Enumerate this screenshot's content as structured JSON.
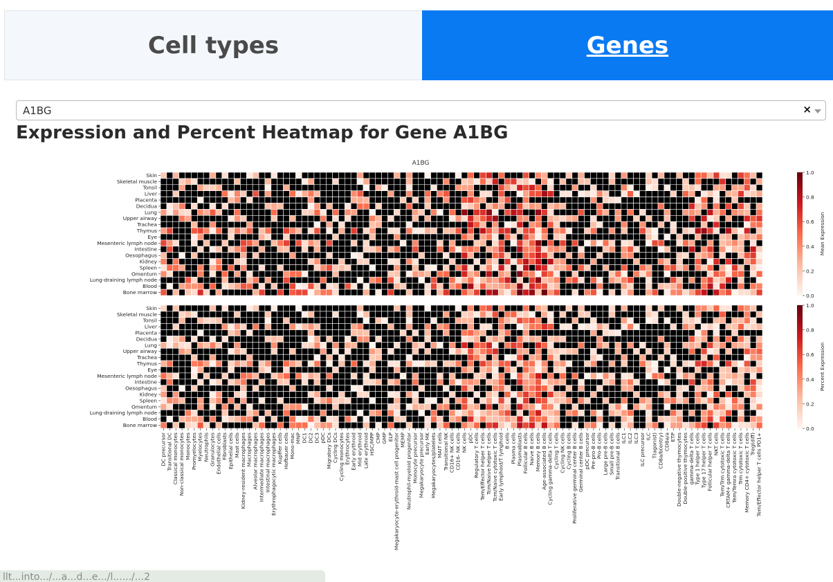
{
  "tabs": [
    {
      "label": "Cell types"
    },
    {
      "label": "Genes"
    }
  ],
  "select": {
    "value": "A1BG",
    "clear_icon": "×"
  },
  "heading": "Expression and Percent Heatmap for Gene A1BG",
  "status_url": "llt...into.../...a...d...e.../l....../...2",
  "chart_data": {
    "type": "heatmap",
    "title": "A1BG",
    "tissues": [
      "Skin",
      "Skeletal muscle",
      "Tonsil",
      "Liver",
      "Placenta",
      "Decidua",
      "Lung",
      "Upper airway",
      "Trachea",
      "Thymus",
      "Eye",
      "Mesenteric lymph node",
      "Intestine",
      "Oesophagus",
      "Kidney",
      "Spleen",
      "Omentum",
      "Lung-draining lymph node",
      "Blood",
      "Bone marrow"
    ],
    "cell_types": [
      "DC precursor",
      "Transitional DC",
      "Classical monocytes",
      "Non-classical monocytes",
      "Monocytes",
      "Promyelocytes",
      "Myelocytes",
      "Neutrophils",
      "Granulocytes",
      "Endothelial cells",
      "Fibroblasts",
      "Epithelial cells",
      "Mast cells",
      "Kidney-resident macrophages",
      "Macrophages",
      "Alveolar macrophages",
      "Intermediate macrophages",
      "Intestinal macrophages",
      "Erythrophagocytic macrophages",
      "Kupffer cells",
      "Hofbauer cells",
      "Mono-mac",
      "MNP",
      "DC1",
      "DC2",
      "DC3",
      "pDC",
      "Migratory DCs",
      "Cycling DCs",
      "Cycling monocytes",
      "Erythrocytes",
      "Early erythroid",
      "Mid erythroid",
      "Late erythroid",
      "HSC/MPP",
      "CMP",
      "GMP",
      "ELP",
      "Megakaryocyte-erythroid-mast cell progenitor",
      "MEMP",
      "Neutrophil-myeloid progenitor",
      "Monocyte precursor",
      "Megakaryocyte precursor",
      "Early MK",
      "Megakaryocytes/platelets",
      "MAIT cells",
      "Transitional NK",
      "CD16+ NK cells",
      "CD16- NK cells",
      "NK cells",
      "pDC",
      "Regulatory T cells",
      "Tem/Effector helper T cells",
      "Tcm/Naive helper T cells",
      "Tcm/Naive cytotoxic T cells",
      "Early lymphoid/T lymphoid",
      "B cells",
      "Plasma cells",
      "Plasmablasts",
      "Follicular B cells",
      "Naive B cells",
      "Memory B cells",
      "Age-associated B cells",
      "Cycling gamma-delta T cells",
      "Cycling T cells",
      "Cycling NK cells",
      "Cycling B cells",
      "Proliferative germinal center B cells",
      "Germinal center B cells",
      "pDC precursor",
      "Pre-pro-B cells",
      "Pro-B cells",
      "Large pre-B cells",
      "Small pre-B cells",
      "Transitional B cells",
      "ILC1",
      "ILC2",
      "ILC3",
      "ILC precursor",
      "ILC",
      "T(agonist)",
      "CD8a/b(entry)",
      "CD8a/a",
      "ETP",
      "Double-negative thymocytes",
      "Double-positive thymocytes",
      "gamma-delta T cells",
      "Type 1 helper T cells",
      "Type 17 helper T cells",
      "Follicular helper T cells",
      "NKT cells",
      "Tem/Trm cytotoxic T cells",
      "CRTAM+ gamma-delta T cells",
      "Tem/Temra cytotoxic T cells",
      "Trm cytotoxic T cells",
      "Memory CD4+ cytotoxic T cells",
      "Treg(diff)",
      "Tem/Effector helper T cells PD1+"
    ],
    "panels": [
      {
        "name": "Mean Expression",
        "colorbar_label": "Mean Expression",
        "colorbar_ticks": [
          "1.0",
          "0.8",
          "0.6",
          "0.4",
          "0.2",
          "0.0"
        ]
      },
      {
        "name": "Percent Expression",
        "colorbar_label": "Percent Expression",
        "colorbar_ticks": [
          "1.0",
          "0.8",
          "0.6",
          "0.4",
          "0.2",
          "0.0"
        ]
      }
    ],
    "value_range": [
      0.0,
      1.0
    ],
    "missing_color": "#000000",
    "colormap": [
      "#fff5f0",
      "#fcbba1",
      "#fb6a4a",
      "#cb181d",
      "#67000d"
    ]
  }
}
